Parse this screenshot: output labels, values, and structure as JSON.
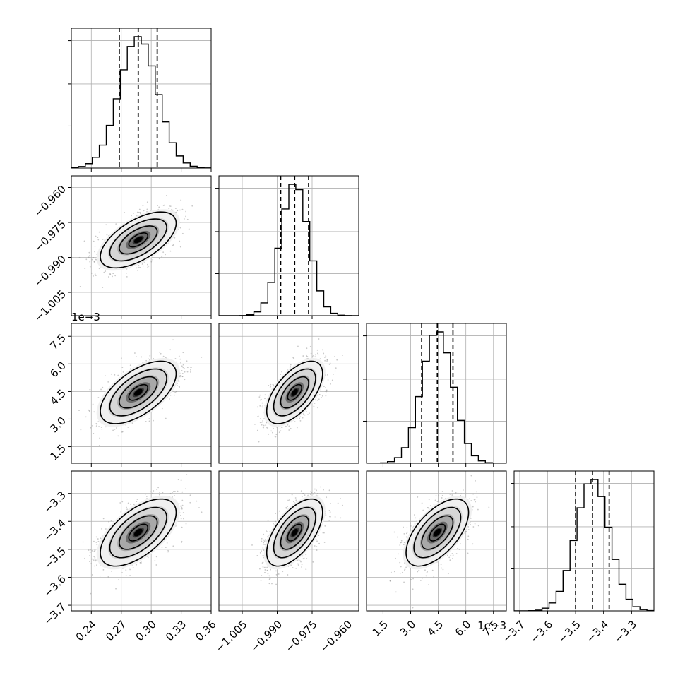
{
  "chart_data": {
    "type": "corner",
    "description_free": true,
    "parameters": [
      {
        "id": "p0",
        "range": [
          0.22,
          0.36
        ],
        "ticks": [
          0.24,
          0.27,
          0.3,
          0.33,
          0.36
        ],
        "tick_labels": [
          "0.24",
          "0.27",
          "0.30",
          "0.33",
          "0.36"
        ],
        "offset_label": "",
        "quantiles": [
          0.268,
          0.287,
          0.306
        ],
        "mean": 0.287,
        "sd": 0.019
      },
      {
        "id": "p1",
        "range": [
          -1.015,
          -0.955
        ],
        "ticks": [
          -1.005,
          -0.99,
          -0.975,
          -0.96
        ],
        "tick_labels": [
          "−1.005",
          "−0.990",
          "−0.975",
          "−0.960"
        ],
        "offset_label": "",
        "quantiles": [
          -0.9885,
          -0.9825,
          -0.9765
        ],
        "mean": -0.9825,
        "sd": 0.006
      },
      {
        "id": "p2",
        "range": [
          0.6,
          8.2
        ],
        "ticks": [
          1.5,
          3.0,
          4.5,
          6.0,
          7.5
        ],
        "tick_labels": [
          "1.5",
          "3.0",
          "4.5",
          "6.0",
          "7.5"
        ],
        "offset_label": "1e−3",
        "quantiles": [
          3.6,
          4.45,
          5.3
        ],
        "mean": 4.45,
        "sd": 0.85
      },
      {
        "id": "p3",
        "range": [
          -3.72,
          -3.22
        ],
        "ticks": [
          -3.7,
          -3.6,
          -3.5,
          -3.4,
          -3.3
        ],
        "tick_labels": [
          "−3.7",
          "−3.6",
          "−3.5",
          "−3.4",
          "−3.3"
        ],
        "offset_label": "",
        "quantiles": [
          -3.5,
          -3.44,
          -3.38
        ],
        "mean": -3.44,
        "sd": 0.06
      }
    ],
    "correlation": 0.6,
    "contour_levels": [
      0.5,
      1.0,
      1.5,
      2.0
    ],
    "grid": true,
    "colors": {
      "density": "#000000",
      "points": "#888888",
      "grid": "#b0b0b0",
      "lines": "#000000"
    }
  }
}
